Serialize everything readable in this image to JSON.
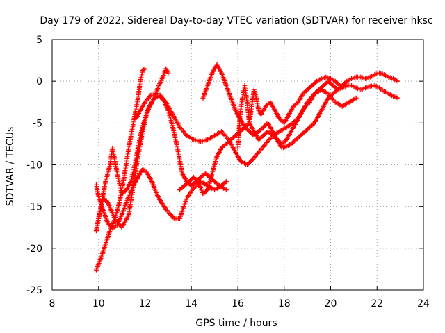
{
  "chart_data": {
    "type": "scatter",
    "title": "Day 179 of 2022, Sidereal Day-to-day VTEC variation (SDTVAR) for receiver hksc",
    "xlabel": "GPS time / hours",
    "ylabel": "SDTVAR / TECUs",
    "xlim": [
      8,
      24
    ],
    "ylim": [
      -25,
      5
    ],
    "xticks": [
      8,
      10,
      12,
      14,
      16,
      18,
      20,
      22,
      24
    ],
    "yticks": [
      -25,
      -20,
      -15,
      -10,
      -5,
      0,
      5
    ],
    "grid": true,
    "marker": "+",
    "color": "#ff0000",
    "series": [
      {
        "x": [
          9.9,
          10.1,
          10.3,
          10.5,
          10.7,
          10.9,
          11.1,
          11.3,
          11.5,
          11.7,
          11.8,
          11.9,
          12.0
        ],
        "y": [
          -22.6,
          -21.2,
          -19.5,
          -17.8,
          -16.5,
          -14.5,
          -11.5,
          -8.0,
          -5.0,
          -2.0,
          0.0,
          1.3,
          1.5
        ]
      },
      {
        "x": [
          10.0,
          10.2,
          10.4,
          10.7,
          11.0,
          11.3,
          11.5,
          11.7,
          11.9,
          12.1,
          12.4,
          12.6,
          12.8,
          12.9,
          13.0
        ],
        "y": [
          -16.4,
          -14.0,
          -14.5,
          -16.5,
          -17.5,
          -16.0,
          -12.5,
          -9.0,
          -6.0,
          -3.5,
          -2.0,
          -0.5,
          0.7,
          1.5,
          1.0
        ]
      },
      {
        "x": [
          9.9,
          10.0,
          10.2,
          10.4,
          10.6,
          10.8,
          11.0,
          11.2,
          11.5,
          11.7,
          11.9,
          12.1,
          12.3,
          12.5,
          12.7,
          12.9,
          13.1,
          13.3,
          13.5,
          13.8,
          14.1,
          14.4,
          14.7,
          15.0,
          15.3,
          15.5
        ],
        "y": [
          -12.4,
          -13.8,
          -15.5,
          -17.0,
          -17.6,
          -17.2,
          -16.0,
          -14.5,
          -12.5,
          -11.5,
          -10.5,
          -11.0,
          -12.0,
          -13.5,
          -14.5,
          -15.3,
          -16.0,
          -16.5,
          -16.4,
          -14.0,
          -12.8,
          -12.0,
          -12.5,
          -13.0,
          -12.5,
          -12.0
        ]
      },
      {
        "x": [
          9.9,
          10.1,
          10.3,
          10.5,
          10.6,
          10.8,
          11.0,
          11.2,
          11.4,
          11.6,
          11.8,
          12.0,
          12.2,
          12.4,
          12.6,
          12.8,
          13.0,
          13.2,
          13.4,
          13.6,
          13.8,
          14.0,
          14.2,
          14.4,
          14.6,
          14.8,
          15.0,
          15.2,
          15.5
        ],
        "y": [
          -17.9,
          -15.0,
          -12.0,
          -10.0,
          -8.0,
          -11.0,
          -13.5,
          -13.0,
          -12.0,
          -9.5,
          -6.5,
          -4.5,
          -3.0,
          -2.0,
          -1.8,
          -2.2,
          -3.5,
          -5.5,
          -8.0,
          -11.0,
          -12.0,
          -12.5,
          -12.0,
          -11.5,
          -11.0,
          -11.5,
          -12.0,
          -12.5,
          -13.0
        ]
      },
      {
        "x": [
          11.6,
          11.8,
          12.0,
          12.3,
          12.6,
          12.9,
          13.2,
          13.5,
          13.8,
          14.1,
          14.4,
          14.7,
          15.0,
          15.3,
          15.6,
          15.9,
          16.1,
          16.4,
          16.6,
          16.9,
          17.2,
          17.5,
          17.8,
          18.1,
          18.4,
          18.7,
          19.0,
          19.3,
          19.6,
          19.9,
          20.2,
          20.5,
          20.8,
          21.1
        ],
        "y": [
          -4.5,
          -3.5,
          -2.5,
          -1.5,
          -1.5,
          -2.5,
          -4.0,
          -5.5,
          -6.5,
          -7.0,
          -7.2,
          -7.0,
          -6.5,
          -6.0,
          -7.0,
          -8.5,
          -9.5,
          -10.0,
          -9.5,
          -8.5,
          -7.5,
          -6.5,
          -6.0,
          -5.5,
          -5.0,
          -4.0,
          -2.5,
          -1.5,
          -1.0,
          -1.5,
          -2.5,
          -3.0,
          -2.5,
          -2.0
        ]
      },
      {
        "x": [
          14.5,
          14.7,
          14.9,
          15.1,
          15.3,
          15.5,
          15.7,
          15.9,
          16.1,
          16.3,
          16.5,
          16.7,
          16.9,
          17.1,
          17.3,
          17.5,
          17.7,
          17.9,
          18.1,
          18.3,
          18.5,
          18.7,
          18.9,
          19.1,
          19.3,
          19.5,
          19.7,
          19.9,
          20.1,
          20.3,
          20.5,
          20.7,
          20.9,
          21.1,
          21.3,
          21.5,
          21.7,
          21.9,
          22.1,
          22.3,
          22.5,
          22.7,
          22.9
        ],
        "y": [
          -2.0,
          -0.5,
          1.0,
          2.0,
          1.0,
          -0.5,
          -2.0,
          -3.5,
          -4.5,
          -5.5,
          -5.0,
          -6.0,
          -7.0,
          -6.5,
          -6.0,
          -6.5,
          -7.0,
          -7.5,
          -7.0,
          -6.0,
          -5.0,
          -4.0,
          -3.0,
          -2.5,
          -1.5,
          -1.0,
          -0.5,
          0.0,
          -0.5,
          -1.0,
          -0.5,
          0.0,
          0.3,
          0.5,
          0.5,
          0.3,
          0.5,
          0.8,
          1.0,
          0.8,
          0.5,
          0.3,
          0.0
        ]
      },
      {
        "x": [
          13.5,
          13.7,
          13.9,
          14.1,
          14.3,
          14.5,
          14.7,
          14.9,
          15.1,
          15.3,
          15.5,
          15.7,
          15.9,
          16.1,
          16.3,
          16.5,
          16.7,
          16.9,
          17.1,
          17.3,
          17.5,
          17.7,
          17.9,
          18.1,
          18.3,
          18.5,
          18.7,
          18.9,
          19.1,
          19.3,
          19.5,
          19.7,
          19.9,
          20.1,
          20.3,
          20.5,
          20.7,
          20.9,
          21.1,
          21.3,
          21.5,
          21.7,
          21.9,
          22.1,
          22.3,
          22.5,
          22.7,
          22.9
        ],
        "y": [
          -13.0,
          -12.5,
          -12.0,
          -11.5,
          -12.0,
          -13.5,
          -13.0,
          -11.0,
          -9.0,
          -8.0,
          -7.5,
          -7.0,
          -6.5,
          -6.0,
          -5.5,
          -6.0,
          -6.5,
          -6.0,
          -5.5,
          -5.0,
          -6.0,
          -7.0,
          -8.0,
          -7.8,
          -7.5,
          -7.0,
          -6.5,
          -6.0,
          -5.5,
          -5.0,
          -4.0,
          -3.0,
          -2.0,
          -1.5,
          -1.0,
          -0.8,
          -0.5,
          -0.5,
          -0.8,
          -1.0,
          -0.8,
          -0.6,
          -0.5,
          -0.8,
          -1.2,
          -1.5,
          -1.8,
          -2.0
        ]
      },
      {
        "x": [
          16.0,
          16.1,
          16.2,
          16.3,
          16.4,
          16.5,
          16.6,
          16.7,
          16.8,
          16.9,
          17.0,
          17.2,
          17.4,
          17.6,
          17.8,
          18.0,
          18.2,
          18.4,
          18.6,
          18.8,
          19.0,
          19.2,
          19.4,
          19.6,
          19.8,
          20.0,
          20.2,
          20.4
        ],
        "y": [
          -8.0,
          -4.0,
          -2.0,
          -0.5,
          -2.5,
          -5.0,
          -3.0,
          -1.0,
          -2.0,
          -3.5,
          -4.0,
          -3.0,
          -2.5,
          -3.5,
          -4.5,
          -5.0,
          -4.0,
          -3.0,
          -2.5,
          -1.5,
          -1.0,
          -0.5,
          0.0,
          0.3,
          0.5,
          0.3,
          0.0,
          -0.5
        ]
      }
    ]
  }
}
